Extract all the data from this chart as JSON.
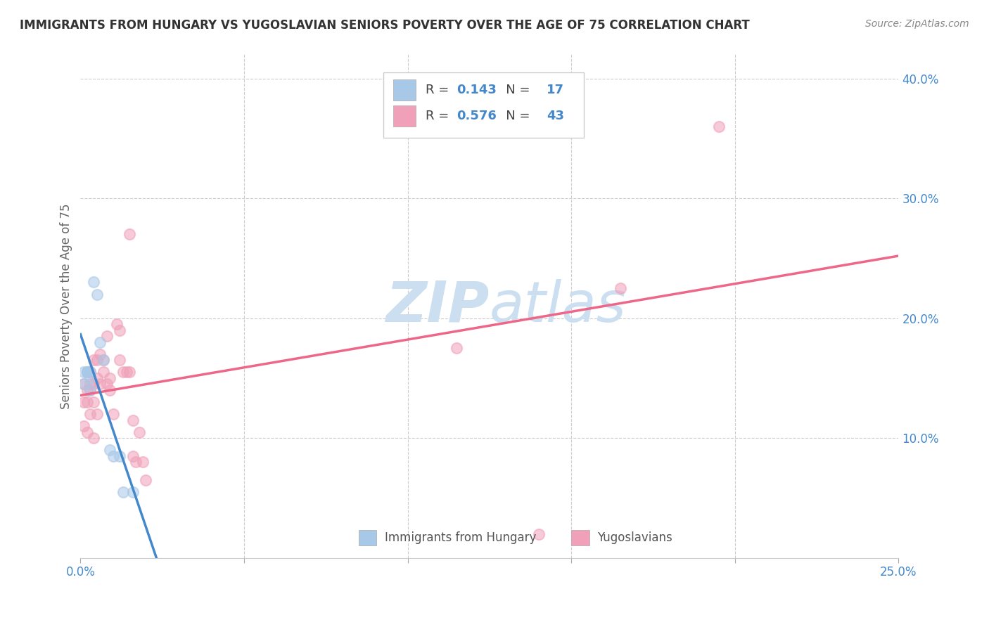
{
  "title": "IMMIGRANTS FROM HUNGARY VS YUGOSLAVIAN SENIORS POVERTY OVER THE AGE OF 75 CORRELATION CHART",
  "source": "Source: ZipAtlas.com",
  "ylabel": "Seniors Poverty Over the Age of 75",
  "legend_label1": "Immigrants from Hungary",
  "legend_label2": "Yugoslavians",
  "R1": "0.143",
  "N1": "17",
  "R2": "0.576",
  "N2": "43",
  "color1": "#a8c8e8",
  "color2": "#f0a0b8",
  "trendline1_color": "#4488cc",
  "trendline2_color": "#ee6688",
  "title_color": "#333333",
  "axis_label_color": "#4488cc",
  "watermark_color": "#ccdff0",
  "xlim": [
    0.0,
    0.25
  ],
  "ylim": [
    0.0,
    0.42
  ],
  "xticks": [
    0.0,
    0.05,
    0.1,
    0.15,
    0.2,
    0.25
  ],
  "xtick_labels": [
    "0.0%",
    "",
    "",
    "",
    "",
    "25.0%"
  ],
  "yticks_right": [
    0.1,
    0.2,
    0.3,
    0.4
  ],
  "ytick_labels_right": [
    "10.0%",
    "20.0%",
    "30.0%",
    "40.0%"
  ],
  "hungary_x": [
    0.001,
    0.001,
    0.002,
    0.002,
    0.002,
    0.003,
    0.003,
    0.003,
    0.004,
    0.005,
    0.006,
    0.007,
    0.009,
    0.01,
    0.012,
    0.013,
    0.016
  ],
  "hungary_y": [
    0.155,
    0.145,
    0.155,
    0.155,
    0.155,
    0.14,
    0.15,
    0.155,
    0.23,
    0.22,
    0.18,
    0.165,
    0.09,
    0.085,
    0.085,
    0.055,
    0.055
  ],
  "yugoslavian_x": [
    0.001,
    0.001,
    0.001,
    0.002,
    0.002,
    0.002,
    0.003,
    0.003,
    0.003,
    0.003,
    0.004,
    0.004,
    0.004,
    0.004,
    0.005,
    0.005,
    0.005,
    0.006,
    0.006,
    0.007,
    0.007,
    0.008,
    0.008,
    0.009,
    0.009,
    0.01,
    0.011,
    0.012,
    0.012,
    0.013,
    0.014,
    0.015,
    0.015,
    0.016,
    0.016,
    0.017,
    0.018,
    0.019,
    0.02,
    0.115,
    0.14,
    0.165,
    0.195
  ],
  "yugoslavian_y": [
    0.145,
    0.13,
    0.11,
    0.14,
    0.13,
    0.105,
    0.155,
    0.145,
    0.14,
    0.12,
    0.165,
    0.145,
    0.13,
    0.1,
    0.165,
    0.15,
    0.12,
    0.17,
    0.145,
    0.165,
    0.155,
    0.185,
    0.145,
    0.15,
    0.14,
    0.12,
    0.195,
    0.19,
    0.165,
    0.155,
    0.155,
    0.27,
    0.155,
    0.115,
    0.085,
    0.08,
    0.105,
    0.08,
    0.065,
    0.175,
    0.02,
    0.225,
    0.36
  ],
  "dot_size": 120,
  "dot_alpha": 0.55,
  "dot_linewidth": 1.5
}
